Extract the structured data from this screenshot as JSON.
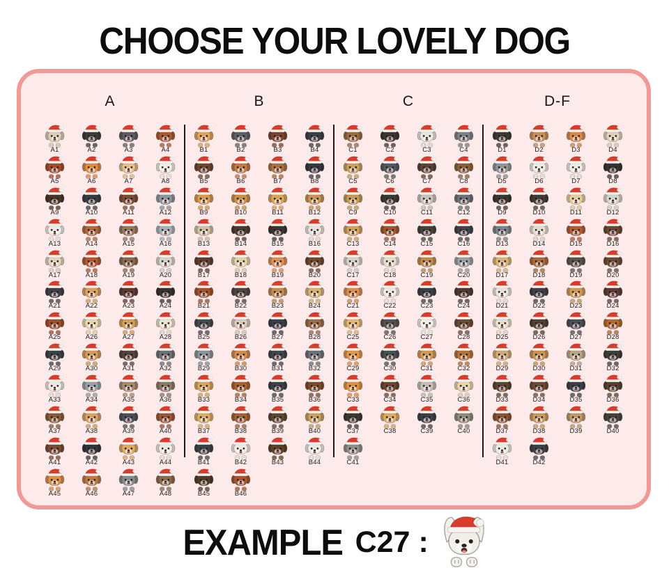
{
  "title": "CHOOSE YOUR LOVELY DOG",
  "panel": {
    "background": "#fcebea",
    "border_color": "#f09a98",
    "divider_color": "#1a1a1a"
  },
  "hat": {
    "red": "#da3b2a",
    "trim": "#f7f3ee"
  },
  "example": {
    "label": "EXAMPLE",
    "code": "C27",
    "separator": ":",
    "dog_id": "C27",
    "dog_color": "#f1efe9"
  },
  "columns": [
    {
      "header": "A",
      "dogs": [
        {
          "id": "A1",
          "c": "#d9cdb2"
        },
        {
          "id": "A2",
          "c": "#3b3b3b"
        },
        {
          "id": "A3",
          "c": "#5c5c64"
        },
        {
          "id": "A4",
          "c": "#a85a33"
        },
        {
          "id": "A5",
          "c": "#a34d2d"
        },
        {
          "id": "A6",
          "c": "#e08a42"
        },
        {
          "id": "A7",
          "c": "#e3bd8a"
        },
        {
          "id": "A8",
          "c": "#f1ece3"
        },
        {
          "id": "A9",
          "c": "#4a3426"
        },
        {
          "id": "A10",
          "c": "#383c42"
        },
        {
          "id": "A11",
          "c": "#7c4b33"
        },
        {
          "id": "A12",
          "c": "#8f959c"
        },
        {
          "id": "A13",
          "c": "#efeae1"
        },
        {
          "id": "A14",
          "c": "#b06a3d"
        },
        {
          "id": "A15",
          "c": "#97785c"
        },
        {
          "id": "A16",
          "c": "#a9afb5"
        },
        {
          "id": "A17",
          "c": "#e2d2bc"
        },
        {
          "id": "A18",
          "c": "#b5572f"
        },
        {
          "id": "A19",
          "c": "#8a6a52"
        },
        {
          "id": "A20",
          "c": "#d7d3cb"
        },
        {
          "id": "A21",
          "c": "#3d4046"
        },
        {
          "id": "A22",
          "c": "#d9a15e"
        },
        {
          "id": "A23",
          "c": "#5e3a35"
        },
        {
          "id": "A24",
          "c": "#363230"
        },
        {
          "id": "A25",
          "c": "#9e4f2c"
        },
        {
          "id": "A26",
          "c": "#e7d6ad"
        },
        {
          "id": "A27",
          "c": "#d2a05b"
        },
        {
          "id": "A28",
          "c": "#e9e2d1"
        },
        {
          "id": "A29",
          "c": "#3c4047"
        },
        {
          "id": "A30",
          "c": "#d29b5c"
        },
        {
          "id": "A31",
          "c": "#55433b"
        },
        {
          "id": "A32",
          "c": "#6e7277"
        },
        {
          "id": "A33",
          "c": "#ede8df"
        },
        {
          "id": "A34",
          "c": "#9aa0a6"
        },
        {
          "id": "A35",
          "c": "#a8896f"
        },
        {
          "id": "A36",
          "c": "#8c7a69"
        },
        {
          "id": "A37",
          "c": "#8a5a3a"
        },
        {
          "id": "A38",
          "c": "#d7a262"
        },
        {
          "id": "A39",
          "c": "#4c5056"
        },
        {
          "id": "A40",
          "c": "#9c5636"
        },
        {
          "id": "A41",
          "c": "#7a4a32"
        },
        {
          "id": "A42",
          "c": "#303338"
        },
        {
          "id": "A43",
          "c": "#dcaa61"
        },
        {
          "id": "A44",
          "c": "#eee8de"
        },
        {
          "id": "A45",
          "c": "#d88f4a"
        },
        {
          "id": "A46",
          "c": "#b97a42"
        },
        {
          "id": "A47",
          "c": "#85898e"
        },
        {
          "id": "A48",
          "c": "#8a6a4e"
        }
      ]
    },
    {
      "header": "B",
      "dogs": [
        {
          "id": "B1",
          "c": "#dfa35c"
        },
        {
          "id": "B2",
          "c": "#5d6167"
        },
        {
          "id": "B3",
          "c": "#7a4430"
        },
        {
          "id": "B4",
          "c": "#3b3e43"
        },
        {
          "id": "B5",
          "c": "#6e4630"
        },
        {
          "id": "B6",
          "c": "#c07a42"
        },
        {
          "id": "B7",
          "c": "#a9713f"
        },
        {
          "id": "B8",
          "c": "#35383d"
        },
        {
          "id": "B9",
          "c": "#d79a50"
        },
        {
          "id": "B10",
          "c": "#c98f4a"
        },
        {
          "id": "B11",
          "c": "#d8a55c"
        },
        {
          "id": "B12",
          "c": "#c79355"
        },
        {
          "id": "B13",
          "c": "#cfc0a4"
        },
        {
          "id": "B14",
          "c": "#4a3b32"
        },
        {
          "id": "B15",
          "c": "#3a3531"
        },
        {
          "id": "B16",
          "c": "#e5e2dc"
        },
        {
          "id": "B17",
          "c": "#5d3f2e"
        },
        {
          "id": "B18",
          "c": "#e2d2a8"
        },
        {
          "id": "B19",
          "c": "#e08f57"
        },
        {
          "id": "B20",
          "c": "#6b4a2e"
        },
        {
          "id": "B21",
          "c": "#a0522d"
        },
        {
          "id": "B22",
          "c": "#4e4540"
        },
        {
          "id": "B23",
          "c": "#c08a50"
        },
        {
          "id": "B24",
          "c": "#d5b278"
        },
        {
          "id": "B25",
          "c": "#45484d"
        },
        {
          "id": "B26",
          "c": "#d7ccba"
        },
        {
          "id": "B27",
          "c": "#3c3f45"
        },
        {
          "id": "B28",
          "c": "#9a6b4a"
        },
        {
          "id": "B29",
          "c": "#8b9197"
        },
        {
          "id": "B30",
          "c": "#d28a4e"
        },
        {
          "id": "B31",
          "c": "#40444a"
        },
        {
          "id": "B32",
          "c": "#6e7277"
        },
        {
          "id": "B33",
          "c": "#d8a55e"
        },
        {
          "id": "B34",
          "c": "#a9612f"
        },
        {
          "id": "B35",
          "c": "#3d4147"
        },
        {
          "id": "B36",
          "c": "#7c4a2c"
        },
        {
          "id": "B37",
          "c": "#dcab66"
        },
        {
          "id": "B38",
          "c": "#a26134"
        },
        {
          "id": "B39",
          "c": "#5d4632"
        },
        {
          "id": "B40",
          "c": "#c9a05e"
        },
        {
          "id": "B41",
          "c": "#3d4147"
        },
        {
          "id": "B42",
          "c": "#efebe3"
        },
        {
          "id": "B43",
          "c": "#5f4026"
        },
        {
          "id": "B44",
          "c": "#ebe9e1"
        },
        {
          "id": "B45",
          "c": "#4f3b28"
        },
        {
          "id": "B46",
          "c": "#a4552e"
        }
      ]
    },
    {
      "header": "C",
      "dogs": [
        {
          "id": "C1",
          "c": "#9a6b42"
        },
        {
          "id": "C2",
          "c": "#3b3632"
        },
        {
          "id": "C3",
          "c": "#e8e5de"
        },
        {
          "id": "C4",
          "c": "#7d8187"
        },
        {
          "id": "C5",
          "c": "#c8a05e"
        },
        {
          "id": "C6",
          "c": "#54575d"
        },
        {
          "id": "C7",
          "c": "#5a4336"
        },
        {
          "id": "C8",
          "c": "#8a5f3a"
        },
        {
          "id": "C9",
          "c": "#c39a58"
        },
        {
          "id": "C10",
          "c": "#3c3935"
        },
        {
          "id": "C11",
          "c": "#c7c3ba"
        },
        {
          "id": "C12",
          "c": "#6d7076"
        },
        {
          "id": "C13",
          "c": "#d2a05b"
        },
        {
          "id": "C14",
          "c": "#a0562e"
        },
        {
          "id": "C15",
          "c": "#46433f"
        },
        {
          "id": "C16",
          "c": "#3f4248"
        },
        {
          "id": "C17",
          "c": "#d4d1c9"
        },
        {
          "id": "C18",
          "c": "#e4dcca"
        },
        {
          "id": "C19",
          "c": "#c08a4e"
        },
        {
          "id": "C20",
          "c": "#9b9fa5"
        },
        {
          "id": "C21",
          "c": "#d98e4c"
        },
        {
          "id": "C22",
          "c": "#ede9e1"
        },
        {
          "id": "C23",
          "c": "#3b3e44"
        },
        {
          "id": "C24",
          "c": "#4e3a30"
        },
        {
          "id": "C25",
          "c": "#e2b776"
        },
        {
          "id": "C26",
          "c": "#56514d"
        },
        {
          "id": "C27",
          "c": "#efece6"
        },
        {
          "id": "C28",
          "c": "#6b4a38"
        },
        {
          "id": "C29",
          "c": "#e0954c"
        },
        {
          "id": "C30",
          "c": "#4b4e53"
        },
        {
          "id": "C31",
          "c": "#cf9a55"
        },
        {
          "id": "C32",
          "c": "#b5713a"
        },
        {
          "id": "C33",
          "c": "#e0913f"
        },
        {
          "id": "C34",
          "c": "#6b4530"
        },
        {
          "id": "C35",
          "c": "#c2beb6"
        },
        {
          "id": "C36",
          "c": "#e5d6ad"
        },
        {
          "id": "C37",
          "c": "#3b3834"
        },
        {
          "id": "C38",
          "c": "#dcaa61"
        },
        {
          "id": "C39",
          "c": "#3d4147"
        },
        {
          "id": "C40",
          "c": "#8f8a7e"
        },
        {
          "id": "C41",
          "c": "#8e8f8a"
        }
      ]
    },
    {
      "header": "D-F",
      "dogs": [
        {
          "id": "D1",
          "c": "#3c3935"
        },
        {
          "id": "D2",
          "c": "#c89058"
        },
        {
          "id": "D3",
          "c": "#d98a4a"
        },
        {
          "id": "D4",
          "c": "#ddd1bb"
        },
        {
          "id": "D5",
          "c": "#8f9398"
        },
        {
          "id": "D6",
          "c": "#eceae2"
        },
        {
          "id": "D7",
          "c": "#eceae2"
        },
        {
          "id": "D8",
          "c": "#363330"
        },
        {
          "id": "D9",
          "c": "#3b3630"
        },
        {
          "id": "D10",
          "c": "#423b33"
        },
        {
          "id": "D11",
          "c": "#e3ce9d"
        },
        {
          "id": "D12",
          "c": "#d5d2ca"
        },
        {
          "id": "D13",
          "c": "#7c8289"
        },
        {
          "id": "D14",
          "c": "#e2dccf"
        },
        {
          "id": "D15",
          "c": "#b05c35"
        },
        {
          "id": "D16",
          "c": "#6b4634"
        },
        {
          "id": "D17",
          "c": "#d8b375"
        },
        {
          "id": "D18",
          "c": "#a8683a"
        },
        {
          "id": "D19",
          "c": "#5a524b"
        },
        {
          "id": "D20",
          "c": "#6b4a36"
        },
        {
          "id": "D21",
          "c": "#e8e3d9"
        },
        {
          "id": "D22",
          "c": "#3d4046"
        },
        {
          "id": "D23",
          "c": "#cf9a55"
        },
        {
          "id": "D24",
          "c": "#5d3a35"
        },
        {
          "id": "D25",
          "c": "#e7dfcb"
        },
        {
          "id": "D26",
          "c": "#523f33"
        },
        {
          "id": "D27",
          "c": "#4b4e53"
        },
        {
          "id": "D28",
          "c": "#b4672f"
        },
        {
          "id": "D29",
          "c": "#cfa977"
        },
        {
          "id": "D30",
          "c": "#c79455"
        },
        {
          "id": "D31",
          "c": "#b9a58a"
        },
        {
          "id": "D32",
          "c": "#403d39"
        },
        {
          "id": "D33",
          "c": "#5d4330"
        },
        {
          "id": "D34",
          "c": "#6e4a34"
        },
        {
          "id": "D35",
          "c": "#3c3f45"
        },
        {
          "id": "D36",
          "c": "#58402e"
        },
        {
          "id": "D37",
          "c": "#8a5434"
        },
        {
          "id": "D38",
          "c": "#c99a5e"
        },
        {
          "id": "D39",
          "c": "#c0996a"
        },
        {
          "id": "D40",
          "c": "#46433f"
        },
        {
          "id": "D41",
          "c": "#ebe9e3"
        },
        {
          "id": "D42",
          "c": "#3e4147"
        }
      ]
    }
  ]
}
